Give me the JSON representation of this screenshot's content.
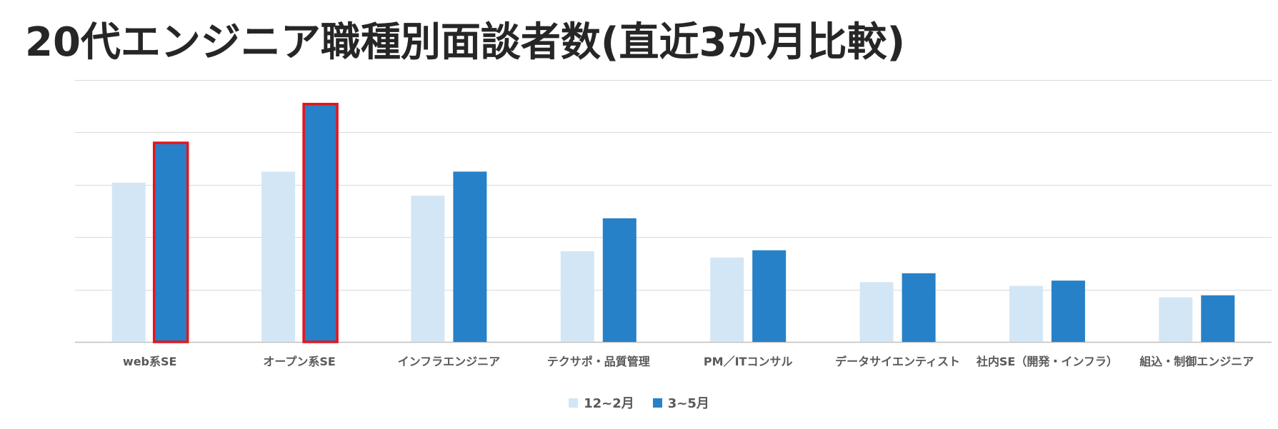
{
  "chart_data": {
    "type": "bar",
    "title": "20代エンジニア職種別面談者数(直近3か月比較)",
    "categories": [
      "web系SE",
      "オープン系SE",
      "インフラエンジニア",
      "テクサポ・品質管理",
      "PM／ITコンサル",
      "データサイエンティスト",
      "社内SE（開発・インフラ）",
      "組込・制御エンジニア"
    ],
    "series": [
      {
        "name": "12~2月",
        "color": "#D3E6F5",
        "values": [
          3.04,
          3.25,
          2.79,
          1.73,
          1.61,
          1.14,
          1.07,
          0.85
        ]
      },
      {
        "name": "3~5月",
        "color": "#2681C8",
        "values": [
          3.8,
          4.54,
          3.25,
          2.36,
          1.75,
          1.31,
          1.17,
          0.89
        ]
      }
    ],
    "highlighted": [
      {
        "series": "3~5月",
        "category": "web系SE",
        "outline": "#E8141A"
      },
      {
        "series": "3~5月",
        "category": "オープン系SE",
        "outline": "#E8141A"
      }
    ],
    "ylim": [
      0,
      5
    ],
    "gridlines": 5,
    "grid": true,
    "y_tick_labels_shown": false,
    "legend_position": "bottom"
  }
}
